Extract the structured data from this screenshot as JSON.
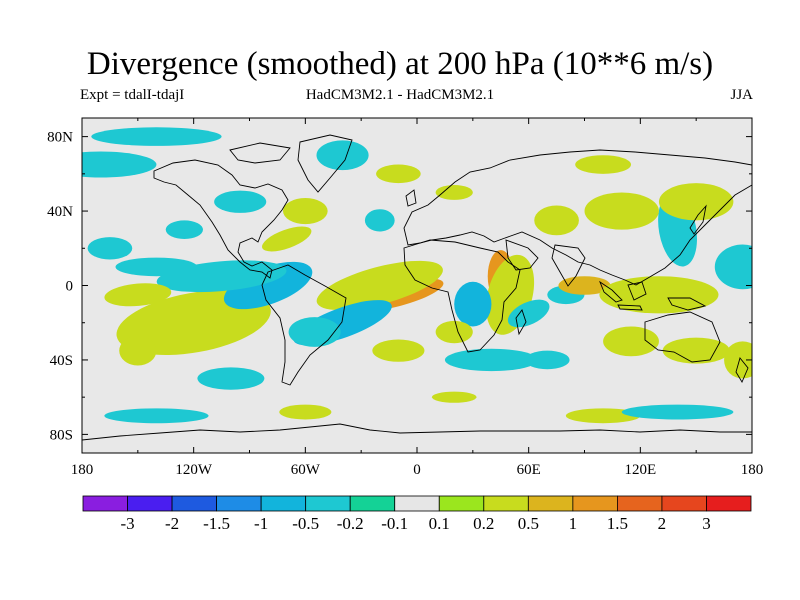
{
  "title": "Divergence (smoothed) at 200 hPa (10**6 m/s)",
  "subtitle_left": "Expt = tdalI-tdajI",
  "subtitle_center": "HadCM3M2.1 - HadCM3M2.1",
  "subtitle_right": "JJA",
  "colors": {
    "background": "#e8e8e8",
    "coast": "#000000",
    "levels": [
      "#8a1ee0",
      "#4a1ef0",
      "#1e5ae0",
      "#1e8ce6",
      "#12b4dc",
      "#1ec8d2",
      "#14d296",
      "#e6e6e6",
      "#9be61e",
      "#c8dc1e",
      "#dcb41e",
      "#e6961e",
      "#e6641e",
      "#e6461e",
      "#e61e1e"
    ]
  },
  "chart_data": {
    "type": "contour-map",
    "variable": "Divergence (smoothed) at 200 hPa",
    "units": "10**6 m/s",
    "season": "JJA",
    "lon_range": [
      -180,
      180
    ],
    "lat_range": [
      -90,
      90
    ],
    "x_ticks": [
      "180",
      "120W",
      "60W",
      "0",
      "60E",
      "120E",
      "180"
    ],
    "x_tick_values": [
      -180,
      -120,
      -60,
      0,
      60,
      120,
      180
    ],
    "y_ticks": [
      "80N",
      "40N",
      "0",
      "40S",
      "80S"
    ],
    "y_tick_values": [
      80,
      40,
      0,
      -40,
      -80
    ],
    "colorbar_labels": [
      "-3",
      "-2",
      "-1.5",
      "-1",
      "-0.5",
      "-0.2",
      "-0.1",
      "0.1",
      "0.2",
      "0.5",
      "1",
      "1.5",
      "2",
      "3"
    ],
    "colorbar_boundaries": [
      -3,
      -2,
      -1.5,
      -1,
      -0.5,
      -0.2,
      -0.1,
      0.1,
      0.2,
      0.5,
      1,
      1.5,
      2,
      3
    ],
    "blobs": [
      {
        "lon": -10,
        "lat": -5,
        "rx": 25,
        "ry": 6,
        "rot": -15,
        "v": 1.2
      },
      {
        "lon": -20,
        "lat": 0,
        "rx": 35,
        "ry": 10,
        "rot": -15,
        "v": 0.4
      },
      {
        "lon": -40,
        "lat": -20,
        "rx": 28,
        "ry": 8,
        "rot": -20,
        "v": -0.6
      },
      {
        "lon": -55,
        "lat": -25,
        "rx": 14,
        "ry": 8,
        "rot": 0,
        "v": -0.3
      },
      {
        "lon": -110,
        "lat": -15,
        "rx": 30,
        "ry": 10,
        "rot": -10,
        "v": 0.8
      },
      {
        "lon": -120,
        "lat": -20,
        "rx": 42,
        "ry": 16,
        "rot": -10,
        "v": 0.3
      },
      {
        "lon": -80,
        "lat": 0,
        "rx": 25,
        "ry": 10,
        "rot": -20,
        "v": -0.6
      },
      {
        "lon": -105,
        "lat": 5,
        "rx": 35,
        "ry": 8,
        "rot": -5,
        "v": -0.5
      },
      {
        "lon": -150,
        "lat": -5,
        "rx": 18,
        "ry": 6,
        "rot": -5,
        "v": 0.4
      },
      {
        "lon": -140,
        "lat": 10,
        "rx": 22,
        "ry": 5,
        "rot": 0,
        "v": -0.3
      },
      {
        "lon": -165,
        "lat": 20,
        "rx": 12,
        "ry": 6,
        "rot": 0,
        "v": -0.4
      },
      {
        "lon": -125,
        "lat": 30,
        "rx": 10,
        "ry": 5,
        "rot": 0,
        "v": -0.3
      },
      {
        "lon": -70,
        "lat": 25,
        "rx": 14,
        "ry": 5,
        "rot": -20,
        "v": 0.4
      },
      {
        "lon": -60,
        "lat": 40,
        "rx": 12,
        "ry": 7,
        "rot": 0,
        "v": 0.3
      },
      {
        "lon": -95,
        "lat": 45,
        "rx": 14,
        "ry": 6,
        "rot": 0,
        "v": -0.4
      },
      {
        "lon": -170,
        "lat": 65,
        "rx": 30,
        "ry": 7,
        "rot": 0,
        "v": -0.4
      },
      {
        "lon": -140,
        "lat": 80,
        "rx": 35,
        "ry": 5,
        "rot": 0,
        "v": -0.3
      },
      {
        "lon": -40,
        "lat": 70,
        "rx": 14,
        "ry": 8,
        "rot": 0,
        "v": -0.4
      },
      {
        "lon": -20,
        "lat": 35,
        "rx": 8,
        "ry": 6,
        "rot": 0,
        "v": -0.4
      },
      {
        "lon": -10,
        "lat": 60,
        "rx": 12,
        "ry": 5,
        "rot": 0,
        "v": 0.3
      },
      {
        "lon": 20,
        "lat": 50,
        "rx": 10,
        "ry": 4,
        "rot": 0,
        "v": 0.3
      },
      {
        "lon": 45,
        "lat": 5,
        "rx": 7,
        "ry": 14,
        "rot": 0,
        "v": 1.0
      },
      {
        "lon": 50,
        "lat": -5,
        "rx": 12,
        "ry": 22,
        "rot": 15,
        "v": 0.4
      },
      {
        "lon": 60,
        "lat": -15,
        "rx": 12,
        "ry": 6,
        "rot": -25,
        "v": -0.5
      },
      {
        "lon": 80,
        "lat": -5,
        "rx": 10,
        "ry": 5,
        "rot": 0,
        "v": -0.5
      },
      {
        "lon": 90,
        "lat": 0,
        "rx": 14,
        "ry": 5,
        "rot": 0,
        "v": 0.8
      },
      {
        "lon": 30,
        "lat": -10,
        "rx": 10,
        "ry": 12,
        "rot": 0,
        "v": -0.6
      },
      {
        "lon": 20,
        "lat": -25,
        "rx": 10,
        "ry": 6,
        "rot": 0,
        "v": 0.3
      },
      {
        "lon": 40,
        "lat": -40,
        "rx": 25,
        "ry": 6,
        "rot": 0,
        "v": -0.4
      },
      {
        "lon": 20,
        "lat": -60,
        "rx": 12,
        "ry": 3,
        "rot": 0,
        "v": 0.3
      },
      {
        "lon": 130,
        "lat": -5,
        "rx": 20,
        "ry": 6,
        "rot": 0,
        "v": 1.0
      },
      {
        "lon": 130,
        "lat": -5,
        "rx": 32,
        "ry": 10,
        "rot": 0,
        "v": 0.3
      },
      {
        "lon": 140,
        "lat": 30,
        "rx": 10,
        "ry": 20,
        "rot": -10,
        "v": -0.5
      },
      {
        "lon": 150,
        "lat": 45,
        "rx": 20,
        "ry": 10,
        "rot": 0,
        "v": 0.3
      },
      {
        "lon": 110,
        "lat": 40,
        "rx": 20,
        "ry": 10,
        "rot": 0,
        "v": 0.3
      },
      {
        "lon": 75,
        "lat": 35,
        "rx": 12,
        "ry": 8,
        "rot": 0,
        "v": 0.3
      },
      {
        "lon": 100,
        "lat": 65,
        "rx": 15,
        "ry": 5,
        "rot": 0,
        "v": 0.2
      },
      {
        "lon": 175,
        "lat": 10,
        "rx": 15,
        "ry": 12,
        "rot": 0,
        "v": -0.5
      },
      {
        "lon": 115,
        "lat": -30,
        "rx": 15,
        "ry": 8,
        "rot": 0,
        "v": 0.3
      },
      {
        "lon": 150,
        "lat": -35,
        "rx": 18,
        "ry": 7,
        "rot": 0,
        "v": 0.3
      },
      {
        "lon": 175,
        "lat": -40,
        "rx": 10,
        "ry": 10,
        "rot": 0,
        "v": 0.3
      },
      {
        "lon": -150,
        "lat": -35,
        "rx": 10,
        "ry": 8,
        "rot": 0,
        "v": 0.3
      },
      {
        "lon": -100,
        "lat": -50,
        "rx": 18,
        "ry": 6,
        "rot": 0,
        "v": -0.3
      },
      {
        "lon": -10,
        "lat": -35,
        "rx": 14,
        "ry": 6,
        "rot": 0,
        "v": 0.3
      },
      {
        "lon": 70,
        "lat": -40,
        "rx": 12,
        "ry": 5,
        "rot": 0,
        "v": -0.4
      },
      {
        "lon": -140,
        "lat": -70,
        "rx": 28,
        "ry": 4,
        "rot": 0,
        "v": -0.4
      },
      {
        "lon": -60,
        "lat": -68,
        "rx": 14,
        "ry": 4,
        "rot": 0,
        "v": 0.3
      },
      {
        "lon": 100,
        "lat": -70,
        "rx": 20,
        "ry": 4,
        "rot": 0,
        "v": 0.3
      },
      {
        "lon": 140,
        "lat": -68,
        "rx": 30,
        "ry": 4,
        "rot": 0,
        "v": -0.3
      }
    ]
  }
}
